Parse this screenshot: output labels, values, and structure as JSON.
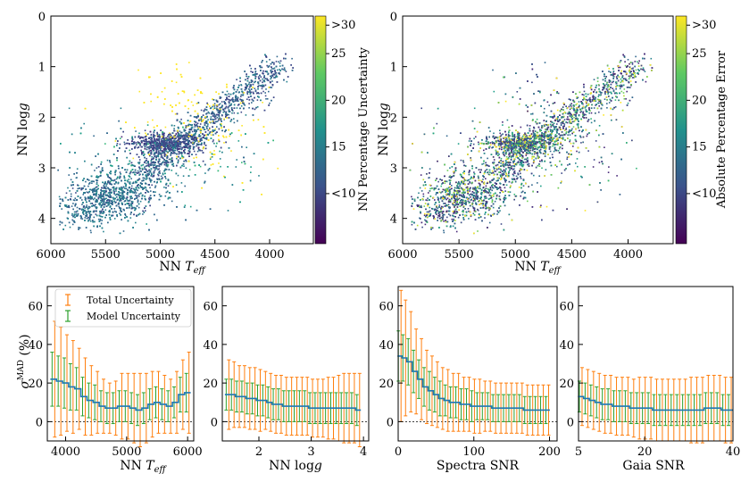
{
  "chart_data": [
    {
      "type": "scatter",
      "title": "",
      "xlabel": "NN T_eff",
      "ylabel": "NN log g",
      "xlim": [
        6000,
        3600
      ],
      "ylim": [
        4.5,
        0
      ],
      "xticks": [
        "6000",
        "5500",
        "5000",
        "4500",
        "4000"
      ],
      "yticks": [
        "0",
        "1",
        "2",
        "3",
        "4"
      ],
      "colorbar": {
        "label": "NN Percentage Uncertainty",
        "ticks": [
          "<10",
          "15",
          "20",
          "25",
          ">30"
        ],
        "colormap": "viridis"
      }
    },
    {
      "type": "scatter",
      "title": "",
      "xlabel": "NN T_eff",
      "ylabel": "NN log g",
      "xlim": [
        6000,
        3600
      ],
      "ylim": [
        4.5,
        0
      ],
      "xticks": [
        "6000",
        "5500",
        "5000",
        "4500",
        "4000"
      ],
      "yticks": [
        "0",
        "1",
        "2",
        "3",
        "4"
      ],
      "colorbar": {
        "label": "Absolute Percentage Error",
        "ticks": [
          "<10",
          "15",
          "20",
          "25",
          ">30"
        ],
        "colormap": "viridis"
      }
    },
    {
      "type": "line",
      "xlabel": "NN T_eff",
      "ylabel": "σ^MAD (%)",
      "xlim": [
        3700,
        6100
      ],
      "ylim": [
        -10,
        70
      ],
      "xticks": [
        "4000",
        "5000",
        "6000"
      ],
      "yticks": [
        "0",
        "20",
        "40",
        "60"
      ],
      "legend": [
        "Total Uncertainty",
        "Model Uncertainty"
      ],
      "x": [
        3800,
        3900,
        4000,
        4100,
        4200,
        4300,
        4400,
        4500,
        4600,
        4700,
        4800,
        4900,
        5000,
        5100,
        5200,
        5300,
        5400,
        5500,
        5600,
        5700,
        5800,
        5900,
        6000
      ],
      "median": [
        22,
        21,
        20,
        18,
        17,
        13,
        11,
        10,
        8,
        7,
        7,
        8,
        8,
        7,
        6,
        7,
        9,
        10,
        9,
        8,
        10,
        14,
        15
      ],
      "total_err": [
        30,
        28,
        25,
        24,
        21,
        20,
        18,
        16,
        14,
        13,
        14,
        17,
        17,
        18,
        19,
        18,
        17,
        16,
        15,
        14,
        16,
        18,
        21
      ],
      "model_err": [
        14,
        13,
        13,
        12,
        11,
        10,
        9,
        9,
        8,
        8,
        8,
        8,
        8,
        8,
        8,
        8,
        8,
        8,
        8,
        8,
        8,
        9,
        10
      ]
    },
    {
      "type": "line",
      "xlabel": "NN log g",
      "ylabel": "",
      "xlim": [
        1.3,
        4.1
      ],
      "ylim": [
        -10,
        70
      ],
      "xticks": [
        "2",
        "3",
        "4"
      ],
      "yticks": [
        "0",
        "20",
        "40",
        "60"
      ],
      "x": [
        1.4,
        1.5,
        1.6,
        1.7,
        1.8,
        1.9,
        2.0,
        2.1,
        2.2,
        2.3,
        2.4,
        2.5,
        2.6,
        2.7,
        2.8,
        2.9,
        3.0,
        3.1,
        3.2,
        3.3,
        3.4,
        3.5,
        3.6,
        3.7,
        3.8,
        3.9
      ],
      "median": [
        14,
        14,
        13,
        13,
        12,
        12,
        11,
        11,
        10,
        9,
        9,
        8,
        8,
        8,
        8,
        8,
        7,
        7,
        7,
        7,
        7,
        7,
        7,
        7,
        7,
        6
      ],
      "total_err": [
        18,
        17,
        16,
        16,
        16,
        16,
        16,
        15,
        15,
        15,
        15,
        15,
        15,
        15,
        15,
        15,
        15,
        15,
        15,
        16,
        16,
        17,
        18,
        18,
        18,
        19
      ],
      "model_err": [
        8,
        8,
        8,
        8,
        8,
        8,
        8,
        8,
        8,
        8,
        8,
        8,
        8,
        8,
        8,
        8,
        8,
        8,
        8,
        8,
        8,
        8,
        8,
        8,
        8,
        8
      ]
    },
    {
      "type": "line",
      "xlabel": "Spectra SNR",
      "ylabel": "",
      "xlim": [
        0,
        210
      ],
      "ylim": [
        -10,
        70
      ],
      "xticks": [
        "0",
        "100",
        "200"
      ],
      "yticks": [
        "0",
        "20",
        "40",
        "60"
      ],
      "x": [
        2,
        8,
        15,
        22,
        29,
        36,
        43,
        50,
        57,
        64,
        71,
        78,
        85,
        92,
        99,
        106,
        113,
        120,
        127,
        134,
        141,
        148,
        155,
        162,
        169,
        176,
        183,
        190,
        197
      ],
      "median": [
        34,
        33,
        31,
        26,
        22,
        18,
        16,
        14,
        12,
        11,
        10,
        10,
        9,
        9,
        8,
        8,
        8,
        8,
        7,
        7,
        7,
        7,
        7,
        7,
        6,
        6,
        6,
        6,
        6
      ],
      "total_err": [
        34,
        30,
        26,
        22,
        21,
        19,
        18,
        17,
        16,
        16,
        15,
        15,
        14,
        14,
        14,
        14,
        13,
        13,
        13,
        13,
        13,
        13,
        13,
        13,
        13,
        13,
        13,
        13,
        13
      ],
      "model_err": [
        13,
        12,
        12,
        11,
        10,
        10,
        10,
        9,
        9,
        8,
        8,
        8,
        8,
        8,
        8,
        7,
        7,
        7,
        7,
        7,
        7,
        7,
        7,
        7,
        7,
        7,
        7,
        7,
        7
      ]
    },
    {
      "type": "line",
      "xlabel": "Gaia SNR",
      "ylabel": "",
      "xlim": [
        5,
        40
      ],
      "ylim": [
        -10,
        70
      ],
      "xticks": [
        "5",
        "20",
        "40"
      ],
      "yticks": [
        "0",
        "20",
        "40",
        "60"
      ],
      "x": [
        5.5,
        6.8,
        8.1,
        9.4,
        10.7,
        12.0,
        13.3,
        14.6,
        15.9,
        17.2,
        18.5,
        19.8,
        21.1,
        22.4,
        23.7,
        25.0,
        26.3,
        27.6,
        28.9,
        30.2,
        31.5,
        32.8,
        34.1,
        35.4,
        36.7,
        38.0,
        39.3
      ],
      "median": [
        13,
        12,
        11,
        10,
        9,
        9,
        8,
        8,
        8,
        7,
        7,
        7,
        7,
        6,
        6,
        6,
        6,
        6,
        6,
        6,
        6,
        6,
        7,
        7,
        7,
        6,
        6
      ],
      "total_err": [
        15,
        15,
        15,
        15,
        15,
        15,
        15,
        15,
        15,
        15,
        16,
        16,
        16,
        16,
        16,
        16,
        16,
        16,
        16,
        17,
        17,
        17,
        17,
        17,
        17,
        17,
        17
      ],
      "model_err": [
        8,
        8,
        8,
        8,
        8,
        8,
        8,
        8,
        8,
        8,
        8,
        8,
        8,
        8,
        8,
        8,
        8,
        8,
        8,
        8,
        8,
        8,
        8,
        8,
        8,
        8,
        8
      ]
    }
  ]
}
